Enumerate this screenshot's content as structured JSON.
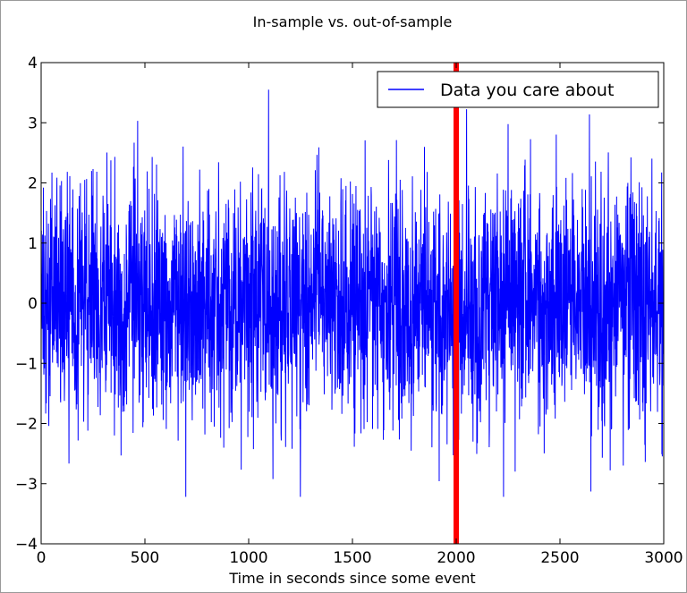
{
  "chart_data": {
    "type": "line",
    "title": "In-sample vs. out-of-sample",
    "xlabel": "Time in seconds since some event",
    "ylabel": "",
    "xlim": [
      0,
      3000
    ],
    "ylim": [
      -4,
      4
    ],
    "x_ticks": [
      "0",
      "500",
      "1000",
      "1500",
      "2000",
      "2500",
      "3000"
    ],
    "y_ticks": [
      "4",
      "3",
      "2",
      "1",
      "0",
      "−1",
      "−2",
      "−3",
      "−4"
    ],
    "grid": false,
    "legend_position": "top-right",
    "series": [
      {
        "name": "Data you care about",
        "color": "#0000ff",
        "x_start": 0,
        "x_end": 3000,
        "n_points": 3001,
        "distribution": "gaussian noise, mean 0, std 1",
        "approx_max": 3.55,
        "approx_min": -3.22
      }
    ],
    "vertical_line": {
      "x": 2000,
      "color": "#ff0000"
    }
  }
}
